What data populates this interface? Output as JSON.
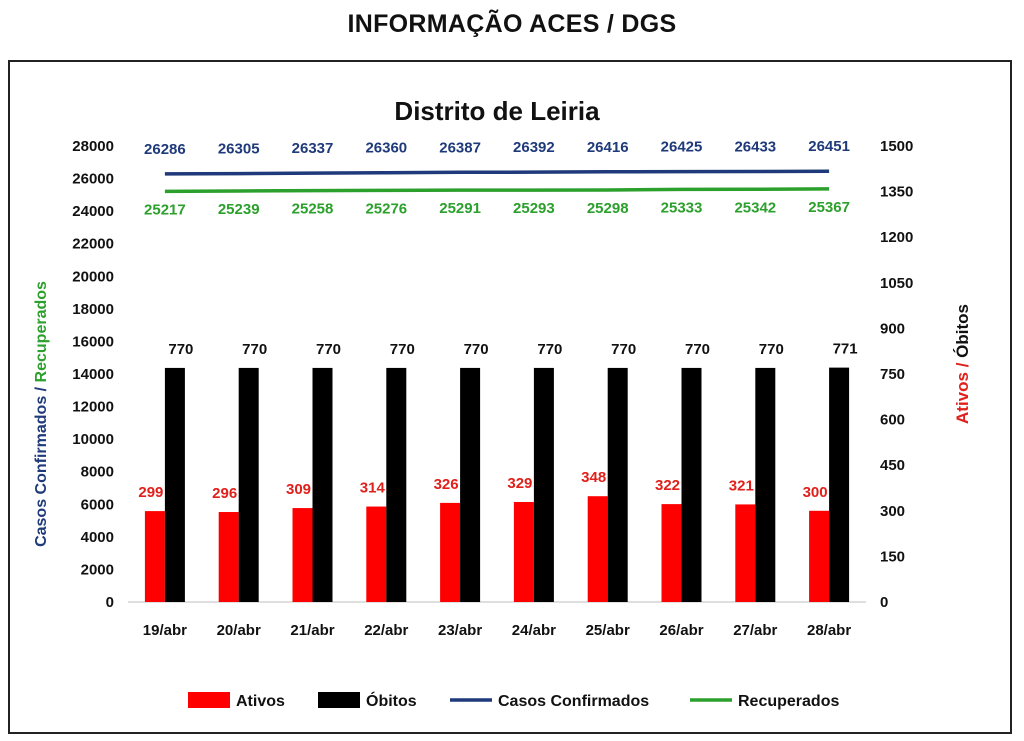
{
  "page": {
    "title": "INFORMAÇÃO ACES / DGS"
  },
  "chart_data": {
    "type": "bar",
    "title": "Distrito de Leiria",
    "categories": [
      "19/abr",
      "20/abr",
      "21/abr",
      "22/abr",
      "23/abr",
      "24/abr",
      "25/abr",
      "26/abr",
      "27/abr",
      "28/abr"
    ],
    "y_left": {
      "label_parts": [
        {
          "text": "Casos Confirmados",
          "color": "#1f3a7a"
        },
        {
          "text": " / ",
          "color": "#1f3a7a"
        },
        {
          "text": "Recuperados",
          "color": "#2ca02c"
        }
      ],
      "range": [
        0,
        28000
      ],
      "ticks": [
        "0",
        "2000",
        "4000",
        "6000",
        "8000",
        "10000",
        "12000",
        "14000",
        "16000",
        "18000",
        "20000",
        "22000",
        "24000",
        "26000",
        "28000"
      ]
    },
    "y_right": {
      "label_parts": [
        {
          "text": "Ativos",
          "color": "#e0201b"
        },
        {
          "text": " / ",
          "color": "#e0201b"
        },
        {
          "text": "Óbitos",
          "color": "#111111"
        }
      ],
      "range": [
        0,
        1500
      ],
      "ticks": [
        "0",
        "150",
        "300",
        "450",
        "600",
        "750",
        "900",
        "1050",
        "1200",
        "1350",
        "1500"
      ]
    },
    "series": [
      {
        "name": "Ativos",
        "kind": "bar",
        "axis": "right",
        "color": "#ff0000",
        "label_color": "#e0201b",
        "values": [
          299,
          296,
          309,
          314,
          326,
          329,
          348,
          322,
          321,
          300
        ]
      },
      {
        "name": "Óbitos",
        "kind": "bar",
        "axis": "right",
        "color": "#000000",
        "label_color": "#111111",
        "values": [
          770,
          770,
          770,
          770,
          770,
          770,
          770,
          770,
          770,
          771
        ]
      },
      {
        "name": "Casos Confirmados",
        "kind": "line",
        "axis": "left",
        "color": "#1f3a7a",
        "label_color": "#1f3a7a",
        "values": [
          26286,
          26305,
          26337,
          26360,
          26387,
          26392,
          26416,
          26425,
          26433,
          26451
        ]
      },
      {
        "name": "Recuperados",
        "kind": "line",
        "axis": "left",
        "color": "#2ca02c",
        "label_color": "#2ca02c",
        "values": [
          25217,
          25239,
          25258,
          25276,
          25291,
          25293,
          25298,
          25333,
          25342,
          25367
        ]
      }
    ],
    "legend": {
      "placement": "bottom"
    },
    "grid": false
  }
}
